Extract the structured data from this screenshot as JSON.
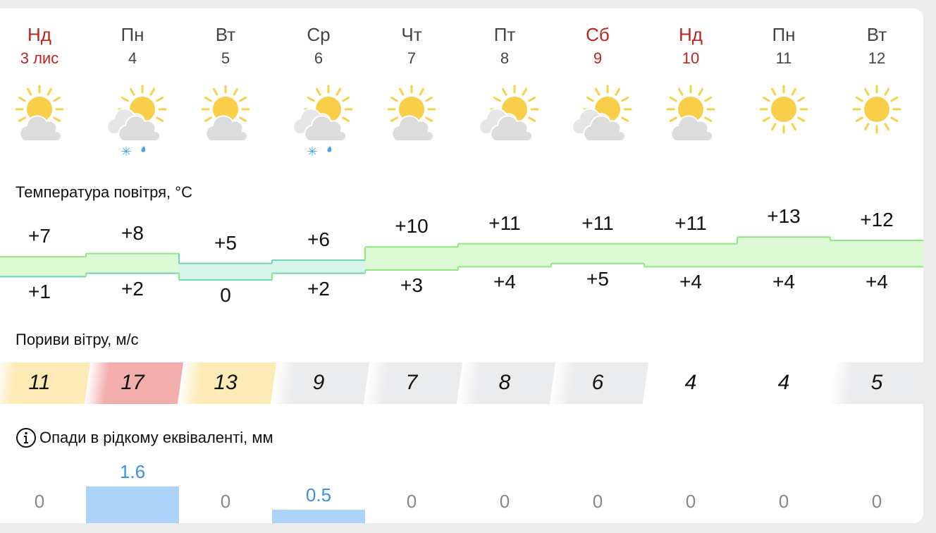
{
  "days": [
    {
      "name": "Нд",
      "date": "3 лис",
      "weekend": true,
      "icon": "sun-behind-cloud-icon",
      "precip_icons": false,
      "t_max": "+7",
      "t_min": "+1",
      "tmax": 7,
      "tmin": 1,
      "gust": "11",
      "gust_color": "#fcebb5",
      "precip": "0",
      "precip_mm": 0
    },
    {
      "name": "Пн",
      "date": "4",
      "weekend": false,
      "icon": "sun-behind-clouds-snow-rain-icon",
      "precip_icons": true,
      "t_max": "+8",
      "t_min": "+2",
      "tmax": 8,
      "tmin": 2,
      "gust": "17",
      "gust_color": "#f2adad",
      "precip": "1.6",
      "precip_mm": 1.6
    },
    {
      "name": "Вт",
      "date": "5",
      "weekend": false,
      "icon": "sun-behind-cloud-icon",
      "precip_icons": false,
      "t_max": "+5",
      "t_min": "0",
      "tmax": 5,
      "tmin": 0,
      "gust": "13",
      "gust_color": "#fcebb5",
      "precip": "0",
      "precip_mm": 0
    },
    {
      "name": "Ср",
      "date": "6",
      "weekend": false,
      "icon": "sun-behind-clouds-snow-rain-icon",
      "precip_icons": true,
      "t_max": "+6",
      "t_min": "+2",
      "tmax": 6,
      "tmin": 2,
      "gust": "9",
      "gust_color": "#ebecee",
      "precip": "0.5",
      "precip_mm": 0.5
    },
    {
      "name": "Чт",
      "date": "7",
      "weekend": false,
      "icon": "sun-behind-cloud-icon",
      "precip_icons": false,
      "t_max": "+10",
      "t_min": "+3",
      "tmax": 10,
      "tmin": 3,
      "gust": "7",
      "gust_color": "#ebecee",
      "precip": "0",
      "precip_mm": 0
    },
    {
      "name": "Пт",
      "date": "8",
      "weekend": false,
      "icon": "sun-behind-clouds-icon",
      "precip_icons": false,
      "t_max": "+11",
      "t_min": "+4",
      "tmax": 11,
      "tmin": 4,
      "gust": "8",
      "gust_color": "#ebecee",
      "precip": "0",
      "precip_mm": 0
    },
    {
      "name": "Сб",
      "date": "9",
      "weekend": true,
      "icon": "sun-behind-clouds-icon",
      "precip_icons": false,
      "t_max": "+11",
      "t_min": "+5",
      "tmax": 11,
      "tmin": 5,
      "gust": "6",
      "gust_color": "#ebecee",
      "precip": "0",
      "precip_mm": 0
    },
    {
      "name": "Нд",
      "date": "10",
      "weekend": true,
      "icon": "sun-behind-cloud-icon",
      "precip_icons": false,
      "t_max": "+11",
      "t_min": "+4",
      "tmax": 11,
      "tmin": 4,
      "gust": "4",
      "gust_color": "#ffffff",
      "precip": "0",
      "precip_mm": 0
    },
    {
      "name": "Пн",
      "date": "11",
      "weekend": false,
      "icon": "sun-icon",
      "precip_icons": false,
      "t_max": "+13",
      "t_min": "+4",
      "tmax": 13,
      "tmin": 4,
      "gust": "4",
      "gust_color": "#ffffff",
      "precip": "0",
      "precip_mm": 0
    },
    {
      "name": "Вт",
      "date": "12",
      "weekend": false,
      "icon": "sun-icon",
      "precip_icons": false,
      "t_max": "+12",
      "t_min": "+4",
      "tmax": 12,
      "tmin": 4,
      "gust": "5",
      "gust_color": "#ebecee",
      "precip": "0",
      "precip_mm": 0
    }
  ],
  "sections": {
    "temperature": "Температура повітря, °C",
    "wind": "Пориви вітру, м/с",
    "precip": "Опади в рідкому еквіваленті, мм"
  },
  "colors": {
    "weekend": "#c0231d",
    "weekday": "#444444",
    "precip_value": "#3f8fe6",
    "precip_zero": "#888888",
    "sun": "#f9cf4a",
    "cloud": "#dcdcdc",
    "cloud_back": "#e6e6e6"
  }
}
